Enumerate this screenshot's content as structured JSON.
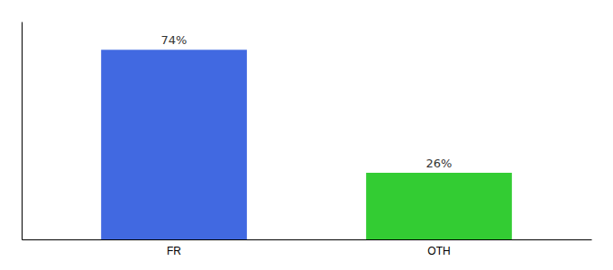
{
  "chart_data": {
    "type": "bar",
    "categories": [
      "FR",
      "OTH"
    ],
    "values": [
      74,
      26
    ],
    "value_labels": [
      "74%",
      "26%"
    ],
    "data_labels": true,
    "colors": [
      "#4169e1",
      "#33cc33"
    ],
    "ylim": [
      0,
      85
    ],
    "yticks": [],
    "tick_labels": "x",
    "grid": false
  }
}
